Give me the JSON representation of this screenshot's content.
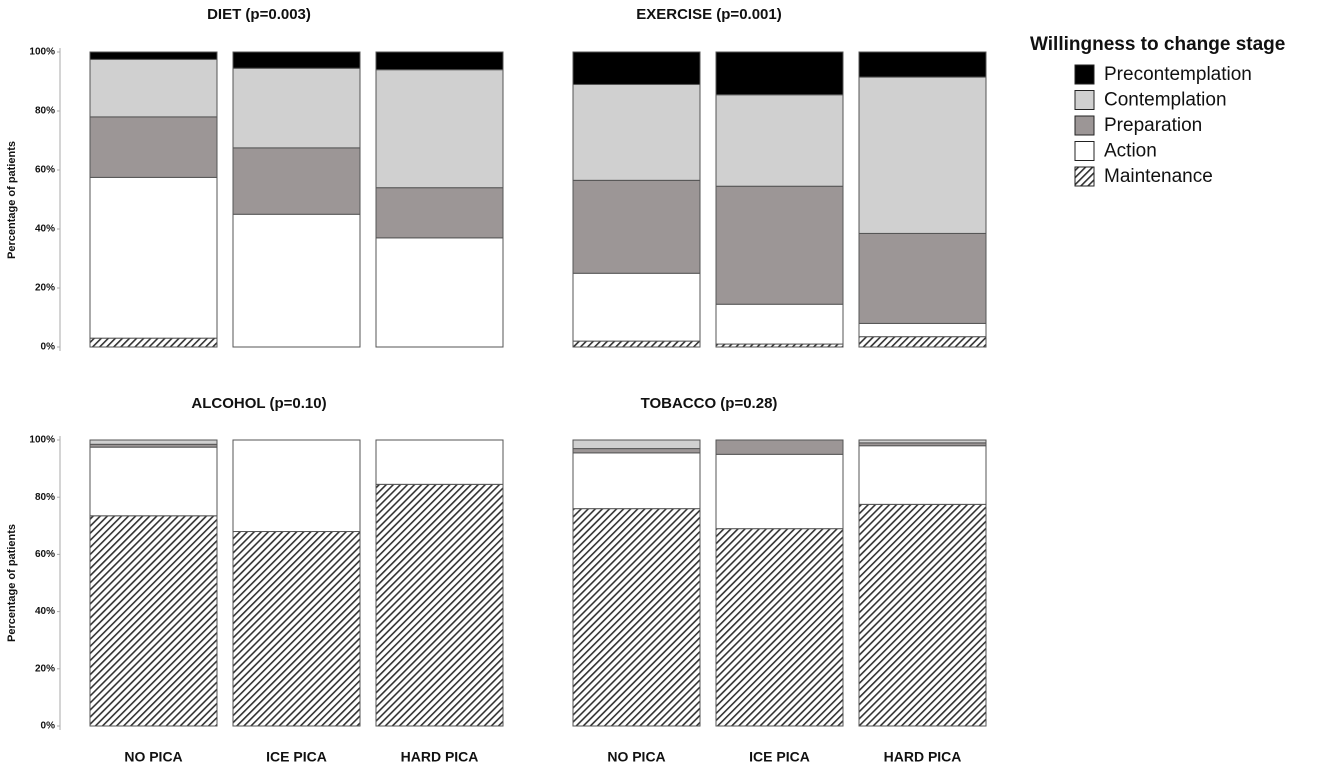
{
  "legend": {
    "title": "Willingness to change stage",
    "entries": [
      "Precontemplation",
      "Contemplation",
      "Preparation",
      "Action",
      "Maintenance"
    ],
    "colors": [
      "#000000",
      "#d0d0d0",
      "#9c9696",
      "#ffffff",
      "#333333"
    ]
  },
  "chart_data": [
    {
      "type": "stacked-bar",
      "title": "DIET (p=0.003)",
      "y_label": "Percentage of patients",
      "categories": [
        null,
        null,
        null
      ],
      "ylim": [
        0,
        100
      ],
      "yticks": [
        {
          "value": 0,
          "label": "0%"
        },
        {
          "value": 20,
          "label": "20%"
        },
        {
          "value": 40,
          "label": "40%"
        },
        {
          "value": 60,
          "label": "60%"
        },
        {
          "value": 80,
          "label": "80%"
        },
        {
          "value": 100,
          "label": "100%"
        }
      ],
      "series": [
        {
          "values": [
            2.5,
            5.5,
            6
          ]
        },
        {
          "values": [
            19.5,
            27,
            40
          ]
        },
        {
          "values": [
            20.5,
            22.5,
            17
          ]
        },
        {
          "values": [
            54.5,
            45,
            37
          ]
        },
        {
          "values": [
            3,
            0,
            0
          ]
        }
      ]
    },
    {
      "type": "stacked-bar",
      "title": "EXERCISE (p=0.001)",
      "categories": [
        null,
        null,
        null
      ],
      "ylim": [
        0,
        100
      ],
      "series": [
        {
          "values": [
            11,
            14.5,
            8.5
          ]
        },
        {
          "values": [
            32.5,
            31,
            53
          ]
        },
        {
          "values": [
            31.5,
            40,
            30.5
          ]
        },
        {
          "values": [
            23,
            13.5,
            4.5
          ]
        },
        {
          "values": [
            2,
            1,
            3.5
          ]
        }
      ]
    },
    {
      "type": "stacked-bar",
      "title": "ALCOHOL (p=0.10)",
      "y_label": "Percentage of patients",
      "categories": [
        "NO PICA",
        "ICE PICA",
        "HARD PICA"
      ],
      "ylim": [
        0,
        100
      ],
      "yticks": [
        {
          "value": 0,
          "label": "0%"
        },
        {
          "value": 20,
          "label": "20%"
        },
        {
          "value": 40,
          "label": "40%"
        },
        {
          "value": 60,
          "label": "60%"
        },
        {
          "value": 80,
          "label": "80%"
        },
        {
          "value": 100,
          "label": "100%"
        }
      ],
      "series": [
        {
          "values": [
            0,
            0,
            0
          ]
        },
        {
          "values": [
            1.5,
            0,
            0
          ]
        },
        {
          "values": [
            1,
            0,
            0
          ]
        },
        {
          "values": [
            24,
            32,
            15.5
          ]
        },
        {
          "values": [
            73.5,
            68,
            84.5
          ]
        }
      ]
    },
    {
      "type": "stacked-bar",
      "title": "TOBACCO (p=0.28)",
      "categories": [
        "NO PICA",
        "ICE PICA",
        "HARD PICA"
      ],
      "ylim": [
        0,
        100
      ],
      "series": [
        {
          "values": [
            0,
            0,
            0
          ]
        },
        {
          "values": [
            3,
            0,
            1
          ]
        },
        {
          "values": [
            1.5,
            5,
            1
          ]
        },
        {
          "values": [
            19.5,
            26,
            20.5
          ]
        },
        {
          "values": [
            76,
            69,
            77.5
          ]
        }
      ]
    }
  ]
}
